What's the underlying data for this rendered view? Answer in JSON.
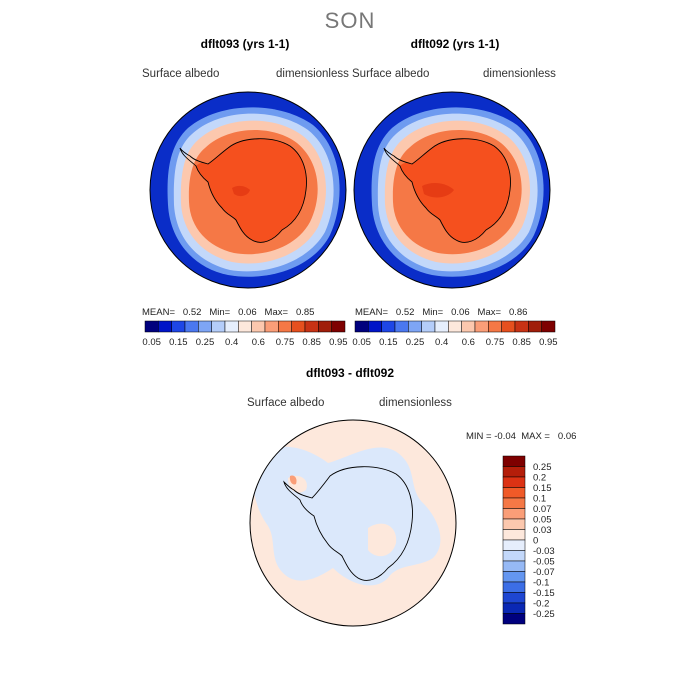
{
  "season": "SON",
  "panels": [
    {
      "title": "dflt093 (yrs 1-1)",
      "variable": "Surface albedo",
      "units": "dimensionless",
      "mean_label": "MEAN=",
      "mean": "0.52",
      "min_label": "Min=",
      "min": "0.06",
      "max_label": "Max=",
      "max": "0.85"
    },
    {
      "title": "dflt092 (yrs 1-1)",
      "variable": "Surface albedo",
      "units": "dimensionless",
      "mean_label": "MEAN=",
      "mean": "0.52",
      "min_label": "Min=",
      "min": "0.06",
      "max_label": "Max=",
      "max": "0.86"
    }
  ],
  "colorbar_top": {
    "labels": [
      "0.05",
      "0.15",
      "0.25",
      "0.4",
      "0.6",
      "0.75",
      "0.85",
      "0.95"
    ],
    "colors": [
      "#00007e",
      "#0014c8",
      "#1e46e6",
      "#4b78f0",
      "#7ea5f5",
      "#b4cdfa",
      "#e6eefc",
      "#fde8dc",
      "#fcc8ae",
      "#fa9e78",
      "#f57846",
      "#e6501e",
      "#c83214",
      "#a01e0a",
      "#7e0000"
    ]
  },
  "diff_panel": {
    "title": "dflt093 - dflt092",
    "variable": "Surface albedo",
    "units": "dimensionless",
    "min_label": "MIN =",
    "min": "-0.04",
    "max_label": "MAX =",
    "max": "0.06",
    "colorbar_labels": [
      "0.25",
      "0.2",
      "0.15",
      "0.1",
      "0.07",
      "0.05",
      "0.03",
      "0",
      "-0.03",
      "-0.05",
      "-0.07",
      "-0.1",
      "-0.15",
      "-0.2",
      "-0.25"
    ],
    "colorbar_colors": [
      "#7e0000",
      "#b41e0a",
      "#dc3214",
      "#f05a28",
      "#f57846",
      "#fa9e78",
      "#fcc8ae",
      "#fde8dc",
      "#e6eefc",
      "#c3d8fa",
      "#96b9f5",
      "#6496f0",
      "#3c6ee6",
      "#1e46d2",
      "#0a28b4",
      "#00007e"
    ]
  },
  "map_colors": {
    "ocean_low": "#0a2dc8",
    "ice_edge_1": "#6e9bf0",
    "ice_edge_2": "#c3d8fa",
    "sea_ice_mid": "#fcc8ae",
    "sea_ice_high": "#f57846",
    "land": "#f5501e",
    "land_dark": "#e63c14",
    "diff_pos": "#fde8dc",
    "diff_neg": "#dbe8fb"
  }
}
